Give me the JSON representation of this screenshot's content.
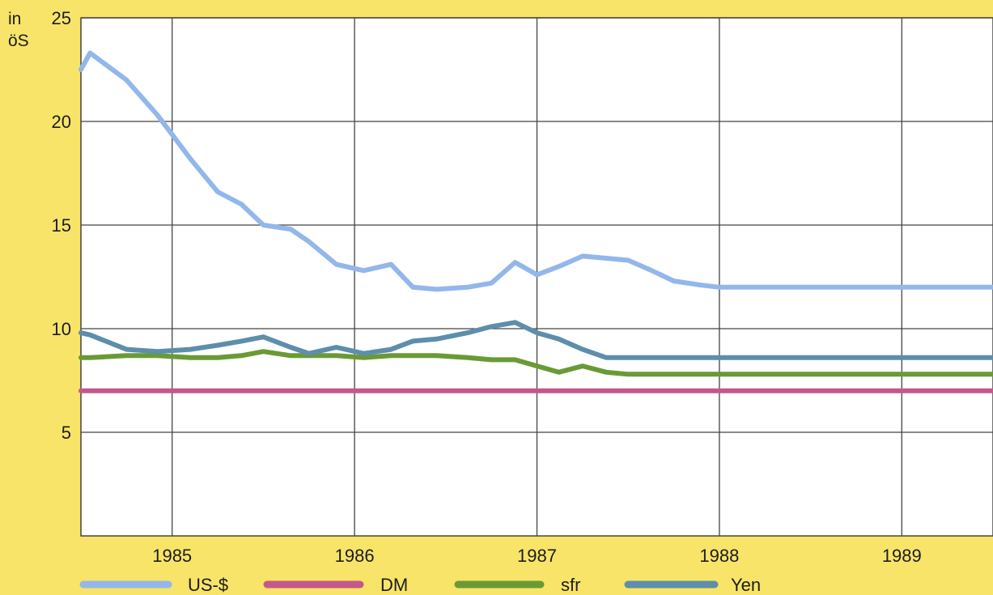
{
  "chart_data": {
    "type": "line",
    "title": "",
    "ylabel": "in öS",
    "xlabel": "",
    "ylim": [
      0,
      25
    ],
    "yticks": [
      5,
      10,
      15,
      20,
      25
    ],
    "x_year_labels": [
      "1985",
      "1986",
      "1987",
      "1988",
      "1989"
    ],
    "x_range": [
      1984.5,
      1989.5
    ],
    "grid": true,
    "legend_position": "bottom",
    "colors": {
      "background": "#f8e469",
      "plot": "#ffffff",
      "grid": "#444444",
      "US-$": "#93b7ea",
      "DM": "#c4588a",
      "sfr": "#6a9a35",
      "Yen": "#5d8eab"
    },
    "x": [
      1984.5,
      1984.55,
      1984.75,
      1984.92,
      1985.1,
      1985.25,
      1985.38,
      1985.5,
      1985.65,
      1985.75,
      1985.9,
      1986.05,
      1986.2,
      1986.32,
      1986.45,
      1986.62,
      1986.75,
      1986.88,
      1987.0,
      1987.12,
      1987.25,
      1987.38,
      1987.5,
      1987.63,
      1987.75,
      1987.9,
      1988.0,
      1988.12,
      1988.25,
      1988.38,
      1988.5,
      1988.62,
      1988.75,
      1988.9,
      1989.0,
      1989.12,
      1989.25,
      1989.38,
      1989.5
    ],
    "series": [
      {
        "name": "US-$",
        "values": [
          22.5,
          23.3,
          22.0,
          20.3,
          18.2,
          16.6,
          16.0,
          15.0,
          14.8,
          14.2,
          13.1,
          12.8,
          13.1,
          12.0,
          11.9,
          12.0,
          12.2,
          13.2,
          12.6,
          13.0,
          13.5,
          13.4,
          13.3,
          12.8,
          12.3,
          12.1,
          12.0,
          12.0,
          12.0,
          12.0,
          12.0,
          12.0,
          12.0,
          12.0,
          12.0,
          12.0,
          12.0,
          12.0,
          12.0
        ]
      },
      {
        "name": "DM",
        "values": [
          7.0,
          7.0,
          7.0,
          7.0,
          7.0,
          7.0,
          7.0,
          7.0,
          7.0,
          7.0,
          7.0,
          7.0,
          7.0,
          7.0,
          7.0,
          7.0,
          7.0,
          7.0,
          7.0,
          7.0,
          7.0,
          7.0,
          7.0,
          7.0,
          7.0,
          7.0,
          7.0,
          7.0,
          7.0,
          7.0,
          7.0,
          7.0,
          7.0,
          7.0,
          7.0,
          7.0,
          7.0,
          7.0,
          7.0
        ]
      },
      {
        "name": "sfr",
        "values": [
          8.6,
          8.6,
          8.7,
          8.7,
          8.6,
          8.6,
          8.7,
          8.9,
          8.7,
          8.7,
          8.7,
          8.6,
          8.7,
          8.7,
          8.7,
          8.6,
          8.5,
          8.5,
          8.2,
          7.9,
          8.2,
          7.9,
          7.8,
          7.8,
          7.8,
          7.8,
          7.8,
          7.8,
          7.8,
          7.8,
          7.8,
          7.8,
          7.8,
          7.8,
          7.8,
          7.8,
          7.8,
          7.8,
          7.8
        ]
      },
      {
        "name": "Yen",
        "values": [
          9.8,
          9.7,
          9.0,
          8.9,
          9.0,
          9.2,
          9.4,
          9.6,
          9.1,
          8.8,
          9.1,
          8.8,
          9.0,
          9.4,
          9.5,
          9.8,
          10.1,
          10.3,
          9.8,
          9.5,
          9.0,
          8.6,
          8.6,
          8.6,
          8.6,
          8.6,
          8.6,
          8.6,
          8.6,
          8.6,
          8.6,
          8.6,
          8.6,
          8.6,
          8.6,
          8.6,
          8.6,
          8.6,
          8.6
        ]
      }
    ]
  }
}
